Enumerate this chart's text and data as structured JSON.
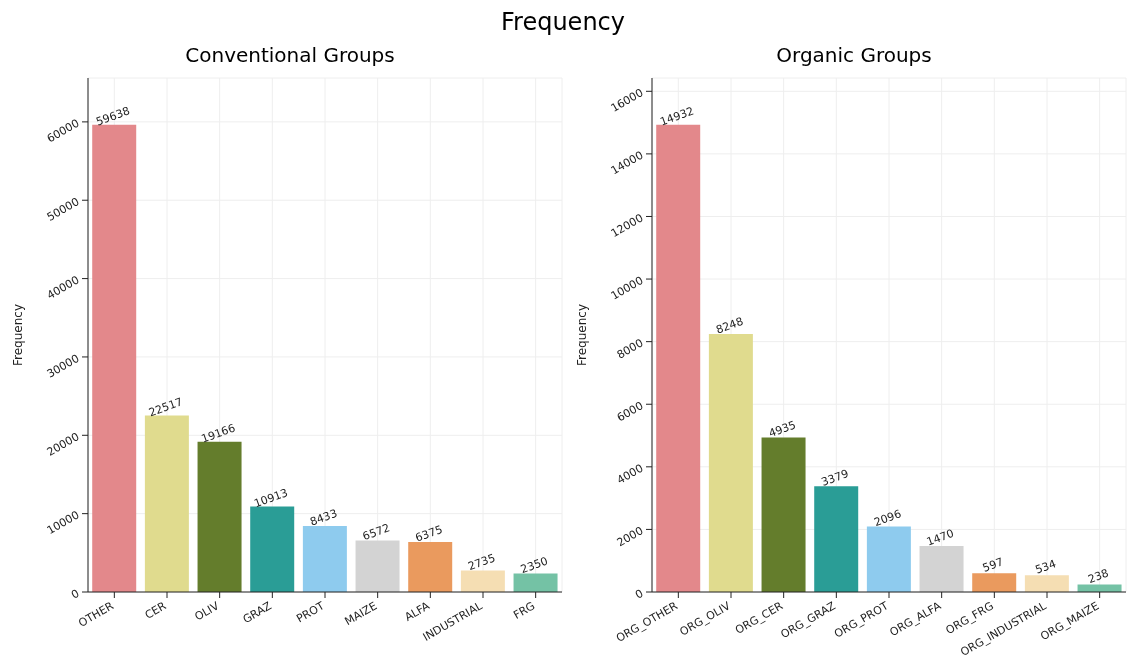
{
  "chart_data": [
    {
      "type": "bar",
      "title": "Conventional Groups",
      "ylabel": "Frequency",
      "annotations": [
        "Frequency"
      ],
      "categories": [
        "OTHER",
        "CER",
        "OLIV",
        "GRAZ",
        "PROT",
        "MAIZE",
        "ALFA",
        "INDUSTRIAL",
        "FRG"
      ],
      "values": [
        59638,
        22517,
        19166,
        10913,
        8433,
        6572,
        6375,
        2735,
        2350
      ],
      "colors": [
        "#e3888b",
        "#e0db8e",
        "#647d2c",
        "#2a9d96",
        "#8ecbee",
        "#d3d3d3",
        "#ea9a5e",
        "#f5deb3",
        "#74c2a5"
      ],
      "ylim": [
        0,
        65600
      ],
      "yticks": [
        0,
        10000,
        20000,
        30000,
        40000,
        50000,
        60000
      ],
      "grid": true,
      "data_labels": true
    },
    {
      "type": "bar",
      "title": "Organic Groups",
      "ylabel": "Frequency",
      "categories": [
        "ORG_OTHER",
        "ORG_OLIV",
        "ORG_CER",
        "ORG_GRAZ",
        "ORG_PROT",
        "ORG_ALFA",
        "ORG_FRG",
        "ORG_INDUSTRIAL",
        "ORG_MAIZE"
      ],
      "values": [
        14932,
        8248,
        4935,
        3379,
        2096,
        1470,
        597,
        534,
        238
      ],
      "colors": [
        "#e3888b",
        "#e0db8e",
        "#647d2c",
        "#2a9d96",
        "#8ecbee",
        "#d3d3d3",
        "#ea9a5e",
        "#f5deb3",
        "#74c2a5"
      ],
      "ylim": [
        0,
        16425
      ],
      "yticks": [
        0,
        2000,
        4000,
        6000,
        8000,
        10000,
        12000,
        14000,
        16000
      ],
      "grid": true,
      "data_labels": true
    }
  ]
}
